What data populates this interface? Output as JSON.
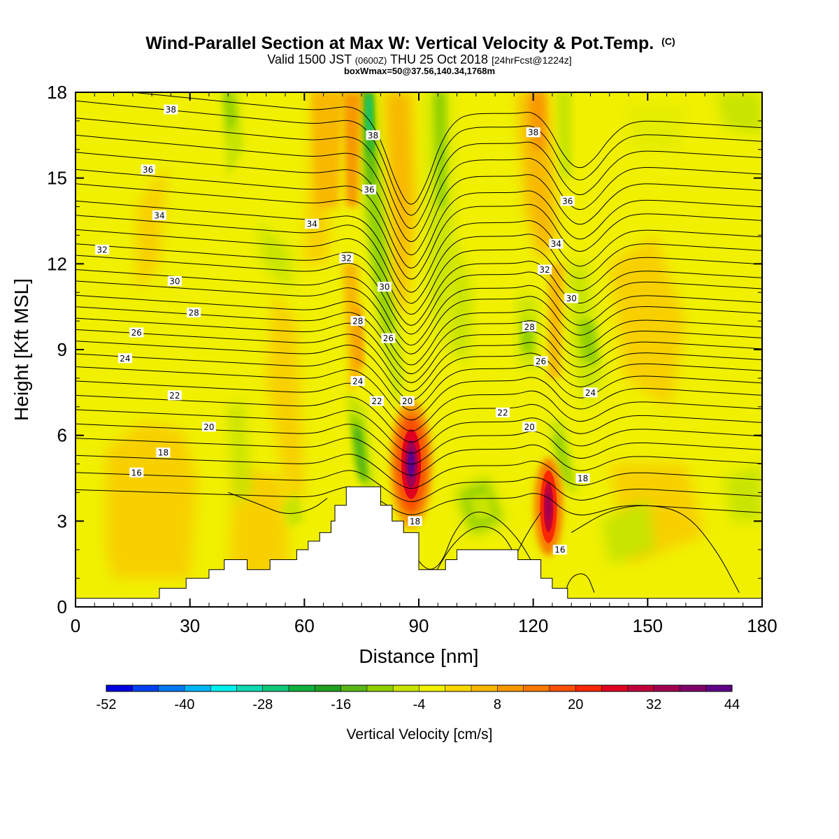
{
  "title": {
    "main": "Wind-Parallel Section at Max W: Vertical Velocity & Pot.Temp.",
    "main_unit": "(C)",
    "valid_prefix": "Valid 1500 JST",
    "valid_z": "(0600Z)",
    "valid_date": "THU 25 Oct 2018",
    "valid_fcst": "[24hrFcst@1224z]",
    "box": "boxWmax=50@37.56,140.34,1768m"
  },
  "chart_data": {
    "type": "heatmap",
    "title": "Wind-Parallel Section at Max W: Vertical Velocity & Pot.Temp. (C)",
    "xlabel": "Distance [nm]",
    "ylabel": "Height [Kft MSL]",
    "xlim": [
      0,
      180
    ],
    "ylim": [
      0,
      18
    ],
    "x_ticks": [
      0,
      30,
      60,
      90,
      120,
      150,
      180
    ],
    "y_ticks": [
      0,
      3,
      6,
      9,
      12,
      15,
      18
    ],
    "colorbar": {
      "label": "Vertical Velocity [cm/s]",
      "tick_labels": [
        "-52",
        "-40",
        "-28",
        "-16",
        "-4",
        "8",
        "20",
        "32",
        "44"
      ],
      "levels": [
        -52,
        -48,
        -44,
        -40,
        -36,
        -32,
        -28,
        -24,
        -20,
        -16,
        -12,
        -8,
        -4,
        0,
        4,
        8,
        12,
        16,
        20,
        24,
        28,
        32,
        36,
        40,
        44
      ],
      "colors": [
        "#0000e0",
        "#0040f0",
        "#0078f0",
        "#00b4f8",
        "#00f0f0",
        "#10d8b0",
        "#10c878",
        "#10b040",
        "#20a020",
        "#58b818",
        "#90d000",
        "#c8e400",
        "#f0f000",
        "#f8d800",
        "#f8b800",
        "#f89800",
        "#f87800",
        "#f85000",
        "#f82800",
        "#e00020",
        "#c00038",
        "#a00050",
        "#800068",
        "#600088"
      ]
    },
    "vertical_velocity_features": [
      {
        "kind": "updraft_max",
        "x": 88,
        "y": 5.0,
        "w": 44
      },
      {
        "kind": "updraft_max",
        "x": 124,
        "y": 3.5,
        "w": 40
      },
      {
        "kind": "updraft",
        "x": 75,
        "y": 17,
        "w": 12
      },
      {
        "kind": "updraft",
        "x": 123,
        "y": 17,
        "w": 12
      },
      {
        "kind": "downdraft",
        "x": 77,
        "y": 14.5,
        "w": -30
      },
      {
        "kind": "downdraft",
        "x": 74,
        "y": 5.5,
        "w": -20
      },
      {
        "kind": "downdraft",
        "x": 126,
        "y": 5.5,
        "w": -10
      },
      {
        "kind": "downdraft",
        "x": 119,
        "y": 10.0,
        "w": -10
      }
    ],
    "pot_temp_contour_labels": [
      {
        "text": "38",
        "x": 25,
        "y": 17.4
      },
      {
        "text": "36",
        "x": 19,
        "y": 15.3
      },
      {
        "text": "34",
        "x": 22,
        "y": 13.7
      },
      {
        "text": "32",
        "x": 7,
        "y": 12.5
      },
      {
        "text": "30",
        "x": 26,
        "y": 11.4
      },
      {
        "text": "28",
        "x": 31,
        "y": 10.3
      },
      {
        "text": "26",
        "x": 16,
        "y": 9.6
      },
      {
        "text": "24",
        "x": 13,
        "y": 8.7
      },
      {
        "text": "22",
        "x": 26,
        "y": 7.4
      },
      {
        "text": "20",
        "x": 35,
        "y": 6.3
      },
      {
        "text": "18",
        "x": 23,
        "y": 5.4
      },
      {
        "text": "16",
        "x": 16,
        "y": 4.7
      },
      {
        "text": "38",
        "x": 78,
        "y": 16.5
      },
      {
        "text": "36",
        "x": 77,
        "y": 14.6
      },
      {
        "text": "34",
        "x": 62,
        "y": 13.4
      },
      {
        "text": "32",
        "x": 71,
        "y": 12.2
      },
      {
        "text": "30",
        "x": 81,
        "y": 11.2
      },
      {
        "text": "28",
        "x": 74,
        "y": 10.0
      },
      {
        "text": "26",
        "x": 82,
        "y": 9.4
      },
      {
        "text": "24",
        "x": 74,
        "y": 7.9
      },
      {
        "text": "22",
        "x": 79,
        "y": 7.2
      },
      {
        "text": "20",
        "x": 87,
        "y": 7.2
      },
      {
        "text": "18",
        "x": 89,
        "y": 3.0
      },
      {
        "text": "38",
        "x": 120,
        "y": 16.6
      },
      {
        "text": "36",
        "x": 129,
        "y": 14.2
      },
      {
        "text": "34",
        "x": 126,
        "y": 12.7
      },
      {
        "text": "32",
        "x": 123,
        "y": 11.8
      },
      {
        "text": "30",
        "x": 130,
        "y": 10.8
      },
      {
        "text": "28",
        "x": 119,
        "y": 9.8
      },
      {
        "text": "26",
        "x": 122,
        "y": 8.6
      },
      {
        "text": "24",
        "x": 135,
        "y": 7.5
      },
      {
        "text": "22",
        "x": 112,
        "y": 6.8
      },
      {
        "text": "20",
        "x": 119,
        "y": 6.3
      },
      {
        "text": "18",
        "x": 133,
        "y": 4.5
      },
      {
        "text": "16",
        "x": 127,
        "y": 2.0
      }
    ],
    "terrain_heights_kft": [
      {
        "x": 0,
        "h": 0.3
      },
      {
        "x": 22,
        "h": 0.65
      },
      {
        "x": 29,
        "h": 1.0
      },
      {
        "x": 35,
        "h": 1.3
      },
      {
        "x": 39,
        "h": 1.65
      },
      {
        "x": 45,
        "h": 1.3
      },
      {
        "x": 51,
        "h": 1.65
      },
      {
        "x": 58,
        "h": 2.0
      },
      {
        "x": 61,
        "h": 2.3
      },
      {
        "x": 64,
        "h": 2.6
      },
      {
        "x": 67,
        "h": 3.0
      },
      {
        "x": 68,
        "h": 3.55
      },
      {
        "x": 71,
        "h": 4.2
      },
      {
        "x": 80,
        "h": 3.55
      },
      {
        "x": 83,
        "h": 3.0
      },
      {
        "x": 86,
        "h": 2.6
      },
      {
        "x": 90,
        "h": 1.3
      },
      {
        "x": 97,
        "h": 1.65
      },
      {
        "x": 100,
        "h": 2.0
      },
      {
        "x": 116,
        "h": 1.65
      },
      {
        "x": 122,
        "h": 1.0
      },
      {
        "x": 125,
        "h": 0.65
      },
      {
        "x": 129,
        "h": 0.3
      },
      {
        "x": 180,
        "h": 0.3
      }
    ]
  }
}
